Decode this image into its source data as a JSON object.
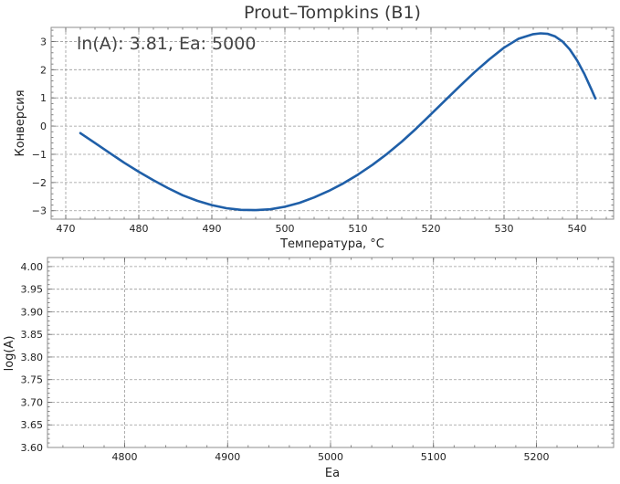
{
  "chart_data": [
    {
      "type": "line",
      "title": "Prout–Tompkins (B1)",
      "annotation": "ln(A): 3.81, Ea: 5000",
      "xlabel": "Температура, °C",
      "ylabel": "Конверсия",
      "xlim": [
        468,
        545
      ],
      "ylim": [
        -3.3,
        3.5
      ],
      "xticks": [
        470,
        480,
        490,
        500,
        510,
        520,
        530,
        540
      ],
      "yticks": [
        -3,
        -2,
        -1,
        0,
        1,
        2,
        3
      ],
      "grid": true,
      "line_color": "#1f5fa8",
      "series": [
        {
          "x": [
            472,
            474,
            476,
            478,
            480,
            482,
            484,
            486,
            488,
            490,
            492,
            494,
            496,
            498,
            500,
            502,
            504,
            506,
            508,
            510,
            512,
            514,
            516,
            518,
            520,
            522,
            524,
            526,
            528,
            530,
            532,
            534,
            535,
            536,
            537,
            538,
            539,
            540,
            541,
            542,
            542.5
          ],
          "y": [
            -0.25,
            -0.6,
            -0.95,
            -1.3,
            -1.62,
            -1.92,
            -2.2,
            -2.45,
            -2.65,
            -2.8,
            -2.91,
            -2.97,
            -2.98,
            -2.95,
            -2.86,
            -2.72,
            -2.53,
            -2.3,
            -2.03,
            -1.72,
            -1.37,
            -0.98,
            -0.55,
            -0.08,
            0.42,
            0.93,
            1.43,
            1.92,
            2.37,
            2.78,
            3.1,
            3.26,
            3.29,
            3.27,
            3.18,
            3.0,
            2.72,
            2.33,
            1.85,
            1.28,
            0.98
          ]
        }
      ]
    },
    {
      "type": "line",
      "xlabel": "Ea",
      "ylabel": "log(A)",
      "xlim": [
        4725,
        5275
      ],
      "ylim": [
        3.6,
        4.02
      ],
      "xticks": [
        4800,
        4900,
        5000,
        5100,
        5200
      ],
      "yticks": [
        3.6,
        3.65,
        3.7,
        3.75,
        3.8,
        3.85,
        3.9,
        3.95,
        4.0
      ],
      "ytick_labels": [
        "3.60",
        "3.65",
        "3.70",
        "3.75",
        "3.80",
        "3.85",
        "3.90",
        "3.95",
        "4.00"
      ],
      "grid": true,
      "series": []
    }
  ]
}
